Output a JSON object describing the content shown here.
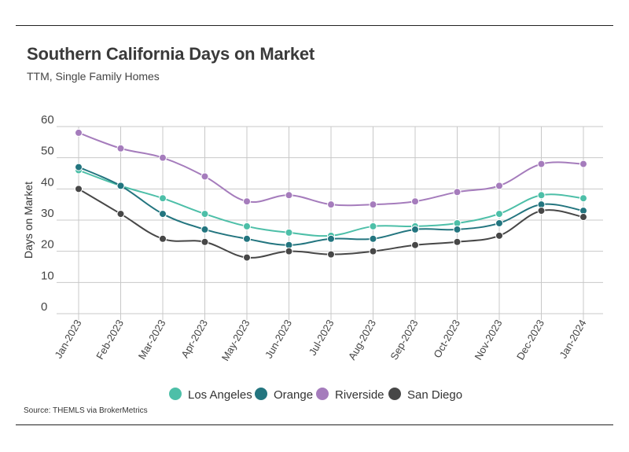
{
  "header": {
    "title": "Southern California Days on Market",
    "subtitle": "TTM, Single Family Homes"
  },
  "footer": {
    "source": "Source:  THEMLS via BrokerMetrics"
  },
  "chart_data": {
    "type": "line",
    "title": "Southern California Days on Market",
    "subtitle": "TTM, Single Family Homes",
    "xlabel": "",
    "ylabel": "Days on Market",
    "ylim": [
      0,
      60
    ],
    "yticks": [
      0,
      10,
      20,
      30,
      40,
      50,
      60
    ],
    "grid": true,
    "legend_position": "bottom",
    "categories": [
      "Jan-2023",
      "Feb-2023",
      "Mar-2023",
      "Apr-2023",
      "May-2023",
      "Jun-2023",
      "Jul-2023",
      "Aug-2023",
      "Sep-2023",
      "Oct-2023",
      "Nov-2023",
      "Dec-2023",
      "Jan-2024"
    ],
    "series": [
      {
        "name": "Los Angeles",
        "color": "#4dbfa8",
        "values": [
          46,
          41,
          37,
          32,
          28,
          26,
          25,
          28,
          28,
          29,
          32,
          38,
          37
        ]
      },
      {
        "name": "Orange",
        "color": "#23757f",
        "values": [
          47,
          41,
          32,
          27,
          24,
          22,
          24,
          24,
          27,
          27,
          29,
          35,
          33
        ]
      },
      {
        "name": "Riverside",
        "color": "#a57cbc",
        "values": [
          58,
          53,
          50,
          44,
          36,
          38,
          35,
          35,
          36,
          39,
          41,
          48,
          48
        ]
      },
      {
        "name": "San Diego",
        "color": "#474747",
        "values": [
          40,
          32,
          24,
          23,
          18,
          20,
          19,
          20,
          22,
          23,
          25,
          33,
          31
        ]
      }
    ]
  }
}
